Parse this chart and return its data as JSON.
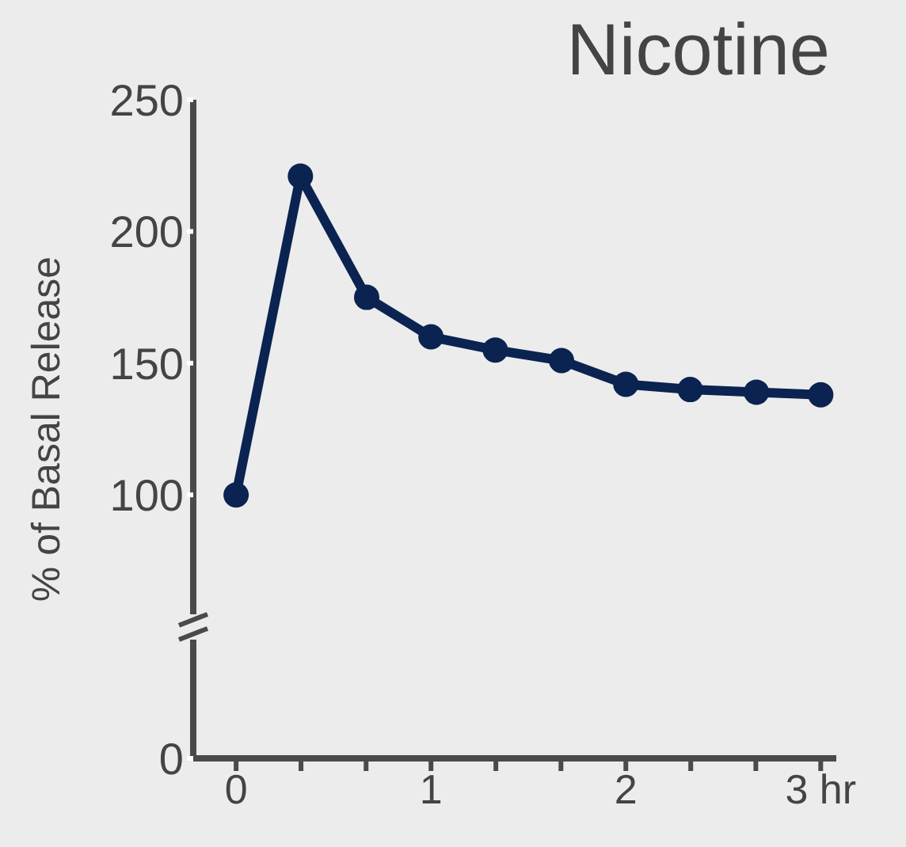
{
  "chart_data": {
    "type": "line",
    "title": "Nicotine",
    "ylabel": "% of Basal Release",
    "x": [
      0,
      0.33,
      0.67,
      1,
      1.33,
      1.67,
      2,
      2.33,
      2.67,
      3
    ],
    "series": [
      {
        "color": "#0a2350",
        "values": [
          100,
          221,
          175,
          160,
          155,
          151,
          142,
          140,
          139,
          138
        ]
      }
    ],
    "xlim": [
      -0.22,
      3.08
    ],
    "xticks": [
      {
        "value": 0,
        "label": "0"
      },
      {
        "value": 0.333,
        "label": null
      },
      {
        "value": 0.667,
        "label": null
      },
      {
        "value": 1,
        "label": "1"
      },
      {
        "value": 1.333,
        "label": null
      },
      {
        "value": 1.667,
        "label": null
      },
      {
        "value": 2,
        "label": "2"
      },
      {
        "value": 2.333,
        "label": null
      },
      {
        "value": 2.667,
        "label": null
      },
      {
        "value": 3,
        "label": "3 hr"
      }
    ],
    "ylim": [
      0,
      250
    ],
    "yticks": [
      0,
      100,
      150,
      200,
      250
    ],
    "grid": false,
    "legend": false,
    "marker": "circle",
    "line_style": "solid"
  }
}
